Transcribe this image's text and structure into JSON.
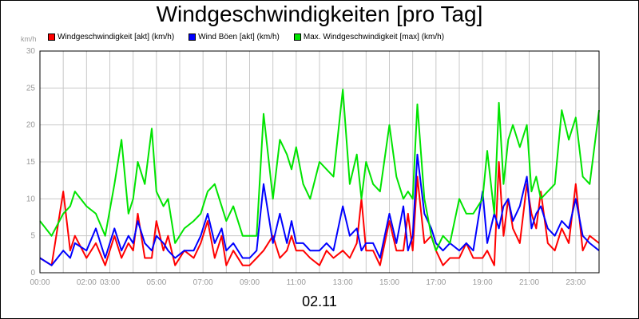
{
  "chart_data": {
    "type": "line",
    "title": "Windgeschwindigkeiten [pro Tag]",
    "ylabel": "km/h",
    "xlabel": "02.11",
    "ylim": [
      0,
      30
    ],
    "y_ticks": [
      "0",
      "5",
      "10",
      "15",
      "20",
      "25",
      "30"
    ],
    "xlim": [
      0,
      24
    ],
    "x_ticks": [
      {
        "value": 0,
        "label": "00:00"
      },
      {
        "value": 2,
        "label": "02:00"
      },
      {
        "value": 3,
        "label": "03:00"
      },
      {
        "value": 5,
        "label": "05:00"
      },
      {
        "value": 7,
        "label": "07:00"
      },
      {
        "value": 9,
        "label": "09:00"
      },
      {
        "value": 11,
        "label": "11:00"
      },
      {
        "value": 13,
        "label": "13:00"
      },
      {
        "value": 15,
        "label": "15:00"
      },
      {
        "value": 17,
        "label": "17:00"
      },
      {
        "value": 19,
        "label": "19:00"
      },
      {
        "value": 21,
        "label": "21:00"
      },
      {
        "value": 23,
        "label": "23:00"
      }
    ],
    "grid": true,
    "legend_position": "top",
    "series": [
      {
        "name": "Windgeschwindigkeit [akt] (km/h)",
        "color": "#ff0000",
        "x": [
          0,
          0.5,
          1,
          1.3,
          1.5,
          2,
          2.4,
          2.8,
          3.2,
          3.5,
          3.8,
          4,
          4.2,
          4.5,
          4.8,
          5,
          5.3,
          5.5,
          5.8,
          6.2,
          6.6,
          6.9,
          7.2,
          7.5,
          7.8,
          8,
          8.3,
          8.7,
          9,
          9.3,
          9.6,
          10,
          10.3,
          10.6,
          10.8,
          11,
          11.3,
          11.6,
          12,
          12.3,
          12.6,
          13,
          13.3,
          13.6,
          13.8,
          14,
          14.3,
          14.6,
          15,
          15.3,
          15.6,
          15.8,
          16,
          16.2,
          16.5,
          16.8,
          17,
          17.3,
          17.6,
          18,
          18.3,
          18.6,
          19,
          19.2,
          19.5,
          19.7,
          19.9,
          20.1,
          20.3,
          20.6,
          20.9,
          21.1,
          21.3,
          21.5,
          21.8,
          22.1,
          22.4,
          22.7,
          23,
          23.3,
          23.6,
          24
        ],
        "y": [
          2,
          1,
          11,
          3,
          5,
          2,
          4,
          1,
          5,
          2,
          4,
          3,
          8,
          2,
          2,
          7,
          3,
          5,
          1,
          3,
          2,
          4,
          7,
          2,
          5,
          1,
          3,
          1,
          1,
          2,
          3,
          5,
          2,
          3,
          5,
          3,
          3,
          2,
          1,
          3,
          2,
          3,
          2,
          4,
          10,
          3,
          3,
          1,
          7,
          3,
          3,
          8,
          3,
          13,
          4,
          5,
          3,
          1,
          2,
          2,
          4,
          2,
          2,
          3,
          1,
          15,
          5,
          10,
          6,
          4,
          12,
          8,
          6,
          11,
          4,
          3,
          6,
          4,
          12,
          3,
          5,
          4
        ]
      },
      {
        "name": "Wind Böen [akt] (km/h)",
        "color": "#0000ff",
        "x": [
          0,
          0.5,
          1,
          1.3,
          1.5,
          2,
          2.4,
          2.8,
          3.2,
          3.5,
          3.8,
          4,
          4.2,
          4.5,
          4.8,
          5,
          5.3,
          5.5,
          5.8,
          6.2,
          6.6,
          6.9,
          7.2,
          7.5,
          7.8,
          8,
          8.3,
          8.7,
          9,
          9.3,
          9.6,
          10,
          10.3,
          10.6,
          10.8,
          11,
          11.3,
          11.6,
          12,
          12.3,
          12.6,
          13,
          13.3,
          13.6,
          13.8,
          14,
          14.3,
          14.6,
          15,
          15.3,
          15.6,
          15.8,
          16,
          16.2,
          16.5,
          16.8,
          17,
          17.3,
          17.6,
          18,
          18.3,
          18.6,
          19,
          19.2,
          19.5,
          19.7,
          19.9,
          20.1,
          20.3,
          20.6,
          20.9,
          21.1,
          21.3,
          21.5,
          21.8,
          22.1,
          22.4,
          22.7,
          23,
          23.3,
          23.6,
          24
        ],
        "y": [
          2,
          1,
          3,
          2,
          4,
          3,
          6,
          2,
          6,
          3,
          5,
          4,
          7,
          4,
          3,
          5,
          4,
          3,
          2,
          3,
          3,
          5,
          8,
          4,
          6,
          3,
          4,
          2,
          2,
          3,
          12,
          4,
          8,
          4,
          7,
          4,
          4,
          3,
          3,
          4,
          3,
          9,
          5,
          6,
          3,
          4,
          4,
          2,
          8,
          4,
          9,
          3,
          5,
          16,
          8,
          6,
          4,
          3,
          4,
          3,
          4,
          3,
          11,
          4,
          8,
          6,
          9,
          10,
          7,
          9,
          13,
          6,
          8,
          9,
          6,
          5,
          7,
          6,
          10,
          5,
          4,
          3
        ]
      },
      {
        "name": "Max. Windgeschwindigkeit [max] (km/h)",
        "color": "#00e400",
        "x": [
          0,
          0.5,
          1,
          1.3,
          1.5,
          2,
          2.4,
          2.8,
          3.2,
          3.5,
          3.8,
          4,
          4.2,
          4.5,
          4.8,
          5,
          5.3,
          5.5,
          5.8,
          6.2,
          6.6,
          6.9,
          7.2,
          7.5,
          7.8,
          8,
          8.3,
          8.7,
          9,
          9.3,
          9.6,
          10,
          10.3,
          10.6,
          10.8,
          11,
          11.3,
          11.6,
          12,
          12.3,
          12.6,
          13,
          13.3,
          13.6,
          13.8,
          14,
          14.3,
          14.6,
          15,
          15.3,
          15.6,
          15.8,
          16,
          16.2,
          16.5,
          16.8,
          17,
          17.3,
          17.6,
          18,
          18.3,
          18.6,
          19,
          19.2,
          19.5,
          19.7,
          19.9,
          20.1,
          20.3,
          20.6,
          20.9,
          21.1,
          21.3,
          21.5,
          21.8,
          22.1,
          22.4,
          22.7,
          23,
          23.3,
          23.6,
          24
        ],
        "y": [
          7,
          5,
          8,
          9,
          11,
          9,
          8,
          5,
          12,
          18,
          8,
          10,
          15,
          12,
          19.5,
          11,
          9,
          10,
          4,
          6,
          7,
          8,
          11,
          12,
          9,
          7,
          9,
          5,
          5,
          5,
          21.5,
          10,
          18,
          16,
          14,
          17,
          12,
          10,
          15,
          14,
          13,
          24.8,
          12,
          16,
          10,
          15,
          12,
          11,
          20,
          13,
          10,
          11,
          10,
          22.8,
          10,
          5,
          3,
          5,
          4,
          10,
          8,
          8,
          10,
          16.5,
          8,
          23,
          12,
          18,
          20,
          17,
          20,
          11,
          13,
          10,
          11,
          12,
          22,
          18,
          21,
          13,
          12,
          22
        ]
      }
    ]
  }
}
